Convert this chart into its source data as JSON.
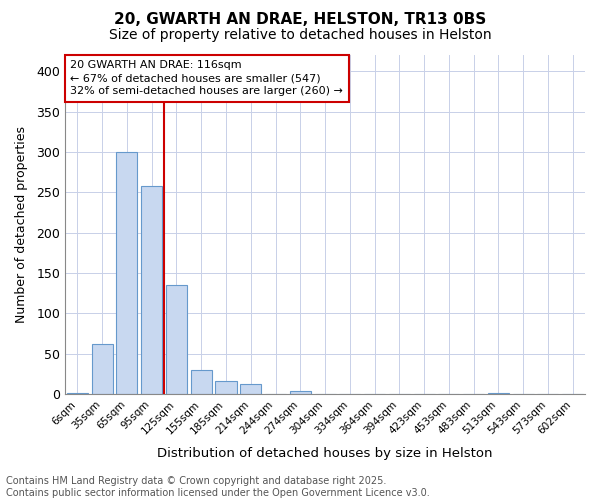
{
  "title": "20, GWARTH AN DRAE, HELSTON, TR13 0BS",
  "subtitle": "Size of property relative to detached houses in Helston",
  "xlabel": "Distribution of detached houses by size in Helston",
  "ylabel": "Number of detached properties",
  "categories": [
    "6sqm",
    "35sqm",
    "65sqm",
    "95sqm",
    "125sqm",
    "155sqm",
    "185sqm",
    "214sqm",
    "244sqm",
    "274sqm",
    "304sqm",
    "334sqm",
    "364sqm",
    "394sqm",
    "423sqm",
    "453sqm",
    "483sqm",
    "513sqm",
    "543sqm",
    "573sqm",
    "602sqm"
  ],
  "values": [
    2,
    62,
    300,
    258,
    135,
    30,
    16,
    12,
    0,
    4,
    0,
    0,
    0,
    0,
    0,
    0,
    0,
    2,
    0,
    0,
    0
  ],
  "bar_color": "#c8d8f0",
  "bar_edge_color": "#6699cc",
  "vline_x": 3.5,
  "vline_color": "#cc0000",
  "annotation_text": "20 GWARTH AN DRAE: 116sqm\n← 67% of detached houses are smaller (547)\n32% of semi-detached houses are larger (260) →",
  "annotation_box_color": "#cc0000",
  "bg_color": "#ffffff",
  "plot_bg_color": "#ffffff",
  "grid_color": "#c8d0e8",
  "ylim": [
    0,
    420
  ],
  "yticks": [
    0,
    50,
    100,
    150,
    200,
    250,
    300,
    350,
    400
  ],
  "footer_text": "Contains HM Land Registry data © Crown copyright and database right 2025.\nContains public sector information licensed under the Open Government Licence v3.0.",
  "title_fontsize": 11,
  "subtitle_fontsize": 10,
  "footer_fontsize": 7
}
